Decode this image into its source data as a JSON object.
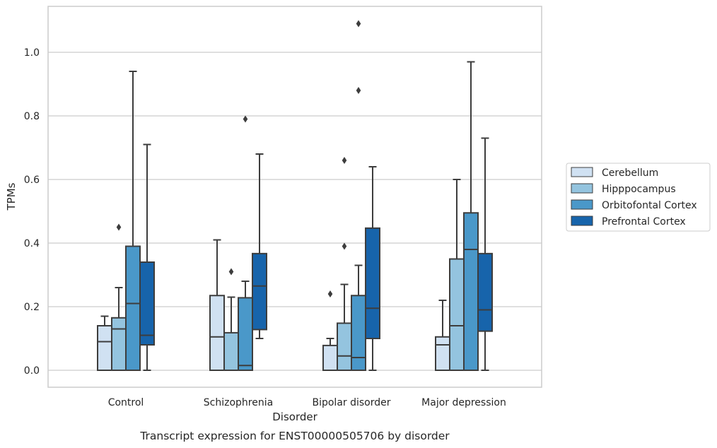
{
  "chart_data": {
    "type": "box",
    "caption": "Transcript expression for ENST00000505706 by disorder",
    "xlabel": "Disorder",
    "ylabel": "TPMs",
    "ylim": [
      -0.05,
      1.15
    ],
    "yticks": [
      "0.0",
      "0.2",
      "0.4",
      "0.6",
      "0.8",
      "1.0"
    ],
    "grid": "horizontal",
    "legend_position": "right",
    "categories": [
      "Control",
      "Schizophrenia",
      "Bipolar disorder",
      "Major depression"
    ],
    "series": [
      {
        "name": "Cerebellum",
        "color": "#d0e1f2",
        "boxes": [
          {
            "whislo": 0,
            "q1": 0,
            "med": 0.09,
            "q3": 0.14,
            "whishi": 0.17,
            "fliers": []
          },
          {
            "whislo": 0,
            "q1": 0,
            "med": 0.105,
            "q3": 0.235,
            "whishi": 0.41,
            "fliers": []
          },
          {
            "whislo": 0,
            "q1": 0,
            "med": 0,
            "q3": 0.078,
            "whishi": 0.1,
            "fliers": [
              0.24
            ]
          },
          {
            "whislo": 0,
            "q1": 0,
            "med": 0.08,
            "q3": 0.105,
            "whishi": 0.22,
            "fliers": []
          }
        ]
      },
      {
        "name": "Hipppocampus",
        "color": "#94c4df",
        "boxes": [
          {
            "whislo": 0,
            "q1": 0,
            "med": 0.13,
            "q3": 0.165,
            "whishi": 0.26,
            "fliers": [
              0.45
            ]
          },
          {
            "whislo": 0,
            "q1": 0,
            "med": 0,
            "q3": 0.118,
            "whishi": 0.23,
            "fliers": [
              0.31
            ]
          },
          {
            "whislo": 0,
            "q1": 0,
            "med": 0.045,
            "q3": 0.148,
            "whishi": 0.27,
            "fliers": [
              0.39,
              0.66
            ]
          },
          {
            "whislo": 0,
            "q1": 0,
            "med": 0.14,
            "q3": 0.35,
            "whishi": 0.6,
            "fliers": []
          }
        ]
      },
      {
        "name": "Orbitofontal Cortex",
        "color": "#4a98c9",
        "boxes": [
          {
            "whislo": 0,
            "q1": 0,
            "med": 0.21,
            "q3": 0.39,
            "whishi": 0.94,
            "fliers": []
          },
          {
            "whislo": 0,
            "q1": 0,
            "med": 0.015,
            "q3": 0.228,
            "whishi": 0.28,
            "fliers": [
              0.79
            ]
          },
          {
            "whislo": 0,
            "q1": 0,
            "med": 0.04,
            "q3": 0.235,
            "whishi": 0.33,
            "fliers": [
              0.88,
              1.09
            ]
          },
          {
            "whislo": 0,
            "q1": 0,
            "med": 0.38,
            "q3": 0.495,
            "whishi": 0.97,
            "fliers": []
          }
        ]
      },
      {
        "name": "Prefrontal Cortex",
        "color": "#1764ab",
        "boxes": [
          {
            "whislo": 0,
            "q1": 0.08,
            "med": 0.11,
            "q3": 0.34,
            "whishi": 0.71,
            "fliers": []
          },
          {
            "whislo": 0.1,
            "q1": 0.128,
            "med": 0.265,
            "q3": 0.367,
            "whishi": 0.68,
            "fliers": []
          },
          {
            "whislo": 0,
            "q1": 0.1,
            "med": 0.195,
            "q3": 0.447,
            "whishi": 0.64,
            "fliers": []
          },
          {
            "whislo": 0,
            "q1": 0.123,
            "med": 0.19,
            "q3": 0.367,
            "whishi": 0.73,
            "fliers": []
          }
        ]
      }
    ]
  }
}
